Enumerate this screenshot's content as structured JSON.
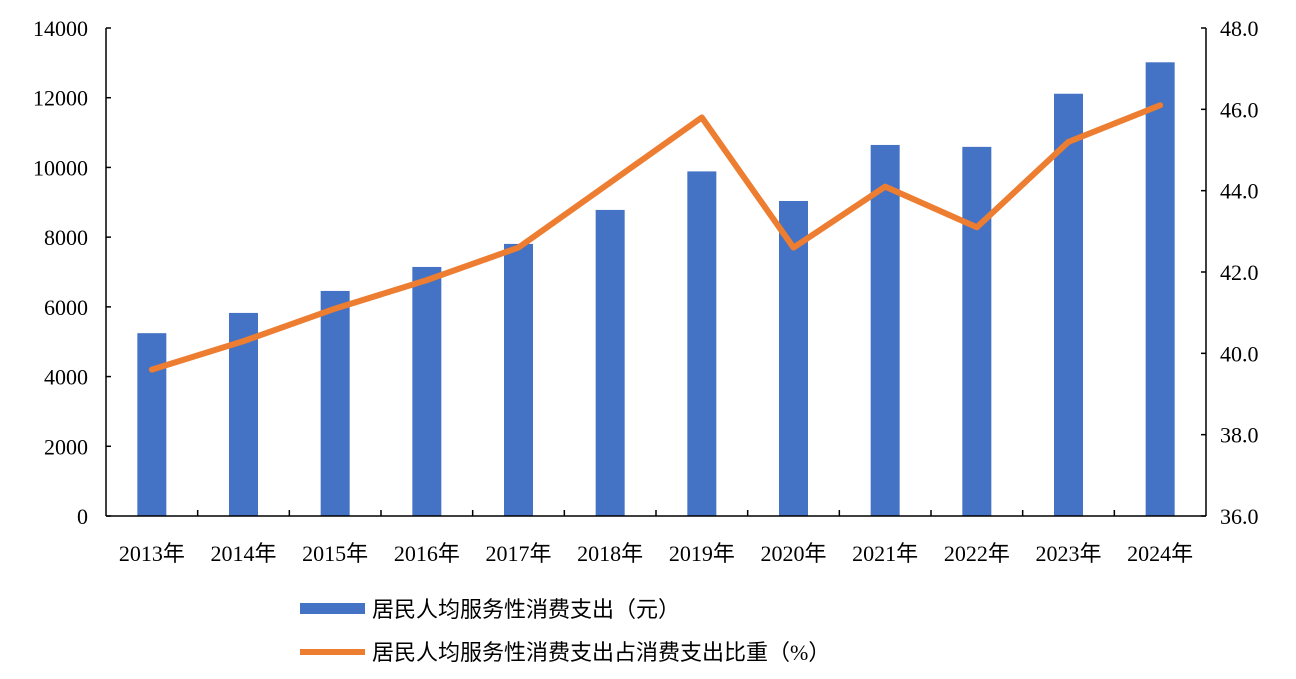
{
  "chart_data": {
    "type": "bar+line",
    "title": "",
    "categories": [
      "2013年",
      "2014年",
      "2015年",
      "2016年",
      "2017年",
      "2018年",
      "2019年",
      "2020年",
      "2021年",
      "2022年",
      "2023年",
      "2024年"
    ],
    "series": [
      {
        "name": "居民人均服务性消费支出（元）",
        "type": "bar",
        "axis": "left",
        "color": "#4472C4",
        "values": [
          5245,
          5826,
          6457,
          7145,
          7806,
          8781,
          9886,
          9037,
          10645,
          10590,
          12114,
          13016
        ]
      },
      {
        "name": "居民人均服务性消费支出占消费支出比重（%）",
        "type": "line",
        "axis": "right",
        "color": "#ED7D31",
        "values": [
          39.6,
          40.3,
          41.1,
          41.8,
          42.6,
          44.2,
          45.8,
          42.6,
          44.1,
          43.1,
          45.2,
          46.1
        ]
      }
    ],
    "left_axis": {
      "ylim": [
        0,
        14000
      ],
      "ticks": [
        "0",
        "2000",
        "4000",
        "6000",
        "8000",
        "10000",
        "12000",
        "14000"
      ]
    },
    "right_axis": {
      "ylim": [
        36,
        48
      ],
      "ticks": [
        "36.0",
        "38.0",
        "40.0",
        "42.0",
        "44.0",
        "46.0",
        "48.0"
      ]
    },
    "grid": false,
    "legend": "bottom"
  }
}
